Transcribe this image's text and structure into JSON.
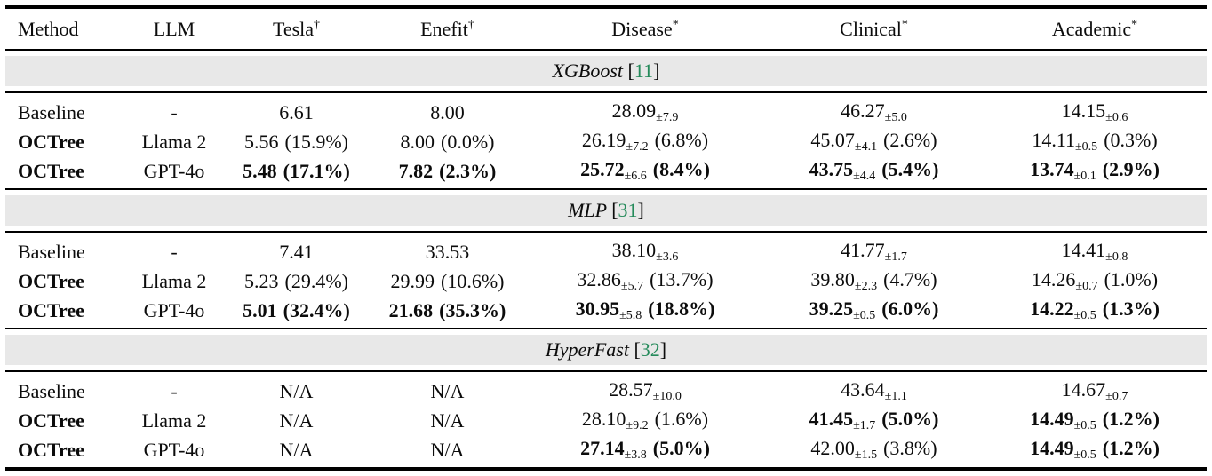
{
  "paper_table": {
    "colors": {
      "citation_green": "#248a5a",
      "band_gray": "#e8e8e8",
      "rule_black": "#000000"
    },
    "headers": [
      {
        "label": "Method",
        "sup": ""
      },
      {
        "label": "LLM",
        "sup": ""
      },
      {
        "label": "Tesla",
        "sup": "†"
      },
      {
        "label": "Enefit",
        "sup": "†"
      },
      {
        "label": "Disease",
        "sup": "*"
      },
      {
        "label": "Clinical",
        "sup": "*"
      },
      {
        "label": "Academic",
        "sup": "*"
      }
    ],
    "column_keys": [
      "tesla",
      "enefit",
      "disease",
      "clinical",
      "academic"
    ],
    "sections": [
      {
        "title": "XGBoost",
        "citation": {
          "open": "[",
          "number": "11",
          "close": "]"
        },
        "rows": [
          {
            "method": "Baseline",
            "bold_method": false,
            "llm": "-",
            "cells": [
              {
                "main": "6.61"
              },
              {
                "main": "8.00"
              },
              {
                "main": "28.09",
                "sub": "±7.9"
              },
              {
                "main": "46.27",
                "sub": "±5.0"
              },
              {
                "main": "14.15",
                "sub": "±0.6"
              }
            ]
          },
          {
            "method": "OCTree",
            "bold_method": true,
            "llm": "Llama 2",
            "cells": [
              {
                "main": "5.56",
                "pct": "(15.9%)"
              },
              {
                "main": "8.00",
                "pct": "(0.0%)"
              },
              {
                "main": "26.19",
                "sub": "±7.2",
                "pct": "(6.8%)"
              },
              {
                "main": "45.07",
                "sub": "±4.1",
                "pct": "(2.6%)"
              },
              {
                "main": "14.11",
                "sub": "±0.5",
                "pct": "(0.3%)"
              }
            ]
          },
          {
            "method": "OCTree",
            "bold_method": true,
            "llm": "GPT-4o",
            "cells": [
              {
                "main": "5.48",
                "pct": "(17.1%)",
                "bold": true
              },
              {
                "main": "7.82",
                "pct": "(2.3%)",
                "bold": true
              },
              {
                "main": "25.72",
                "sub": "±6.6",
                "pct": "(8.4%)",
                "bold": true
              },
              {
                "main": "43.75",
                "sub": "±4.4",
                "pct": "(5.4%)",
                "bold": true
              },
              {
                "main": "13.74",
                "sub": "±0.1",
                "pct": "(2.9%)",
                "bold": true
              }
            ]
          }
        ]
      },
      {
        "title": "MLP",
        "citation": {
          "open": "[",
          "number": "31",
          "close": "]"
        },
        "rows": [
          {
            "method": "Baseline",
            "bold_method": false,
            "llm": "-",
            "cells": [
              {
                "main": "7.41"
              },
              {
                "main": "33.53"
              },
              {
                "main": "38.10",
                "sub": "±3.6"
              },
              {
                "main": "41.77",
                "sub": "±1.7"
              },
              {
                "main": "14.41",
                "sub": "±0.8"
              }
            ]
          },
          {
            "method": "OCTree",
            "bold_method": true,
            "llm": "Llama 2",
            "cells": [
              {
                "main": "5.23",
                "pct": "(29.4%)"
              },
              {
                "main": "29.99",
                "pct": "(10.6%)"
              },
              {
                "main": "32.86",
                "sub": "±5.7",
                "pct": "(13.7%)"
              },
              {
                "main": "39.80",
                "sub": "±2.3",
                "pct": "(4.7%)"
              },
              {
                "main": "14.26",
                "sub": "±0.7",
                "pct": "(1.0%)"
              }
            ]
          },
          {
            "method": "OCTree",
            "bold_method": true,
            "llm": "GPT-4o",
            "cells": [
              {
                "main": "5.01",
                "pct": "(32.4%)",
                "bold": true
              },
              {
                "main": "21.68",
                "pct": "(35.3%)",
                "bold": true
              },
              {
                "main": "30.95",
                "sub": "±5.8",
                "pct": "(18.8%)",
                "bold": true
              },
              {
                "main": "39.25",
                "sub": "±0.5",
                "pct": "(6.0%)",
                "bold": true
              },
              {
                "main": "14.22",
                "sub": "±0.5",
                "pct": "(1.3%)",
                "bold": true
              }
            ]
          }
        ]
      },
      {
        "title": "HyperFast",
        "citation": {
          "open": "[",
          "number": "32",
          "close": "]"
        },
        "rows": [
          {
            "method": "Baseline",
            "bold_method": false,
            "llm": "-",
            "cells": [
              {
                "main": "N/A"
              },
              {
                "main": "N/A"
              },
              {
                "main": "28.57",
                "sub": "±10.0"
              },
              {
                "main": "43.64",
                "sub": "±1.1"
              },
              {
                "main": "14.67",
                "sub": "±0.7"
              }
            ]
          },
          {
            "method": "OCTree",
            "bold_method": true,
            "llm": "Llama 2",
            "cells": [
              {
                "main": "N/A"
              },
              {
                "main": "N/A"
              },
              {
                "main": "28.10",
                "sub": "±9.2",
                "pct": "(1.6%)"
              },
              {
                "main": "41.45",
                "sub": "±1.7",
                "pct": "(5.0%)",
                "bold": true
              },
              {
                "main": "14.49",
                "sub": "±0.5",
                "pct": "(1.2%)",
                "bold": true
              }
            ]
          },
          {
            "method": "OCTree",
            "bold_method": true,
            "llm": "GPT-4o",
            "cells": [
              {
                "main": "N/A"
              },
              {
                "main": "N/A"
              },
              {
                "main": "27.14",
                "sub": "±3.8",
                "pct": "(5.0%)",
                "bold": true
              },
              {
                "main": "42.00",
                "sub": "±1.5",
                "pct": "(3.8%)"
              },
              {
                "main": "14.49",
                "sub": "±0.5",
                "pct": "(1.2%)",
                "bold": true
              }
            ]
          }
        ]
      }
    ]
  }
}
